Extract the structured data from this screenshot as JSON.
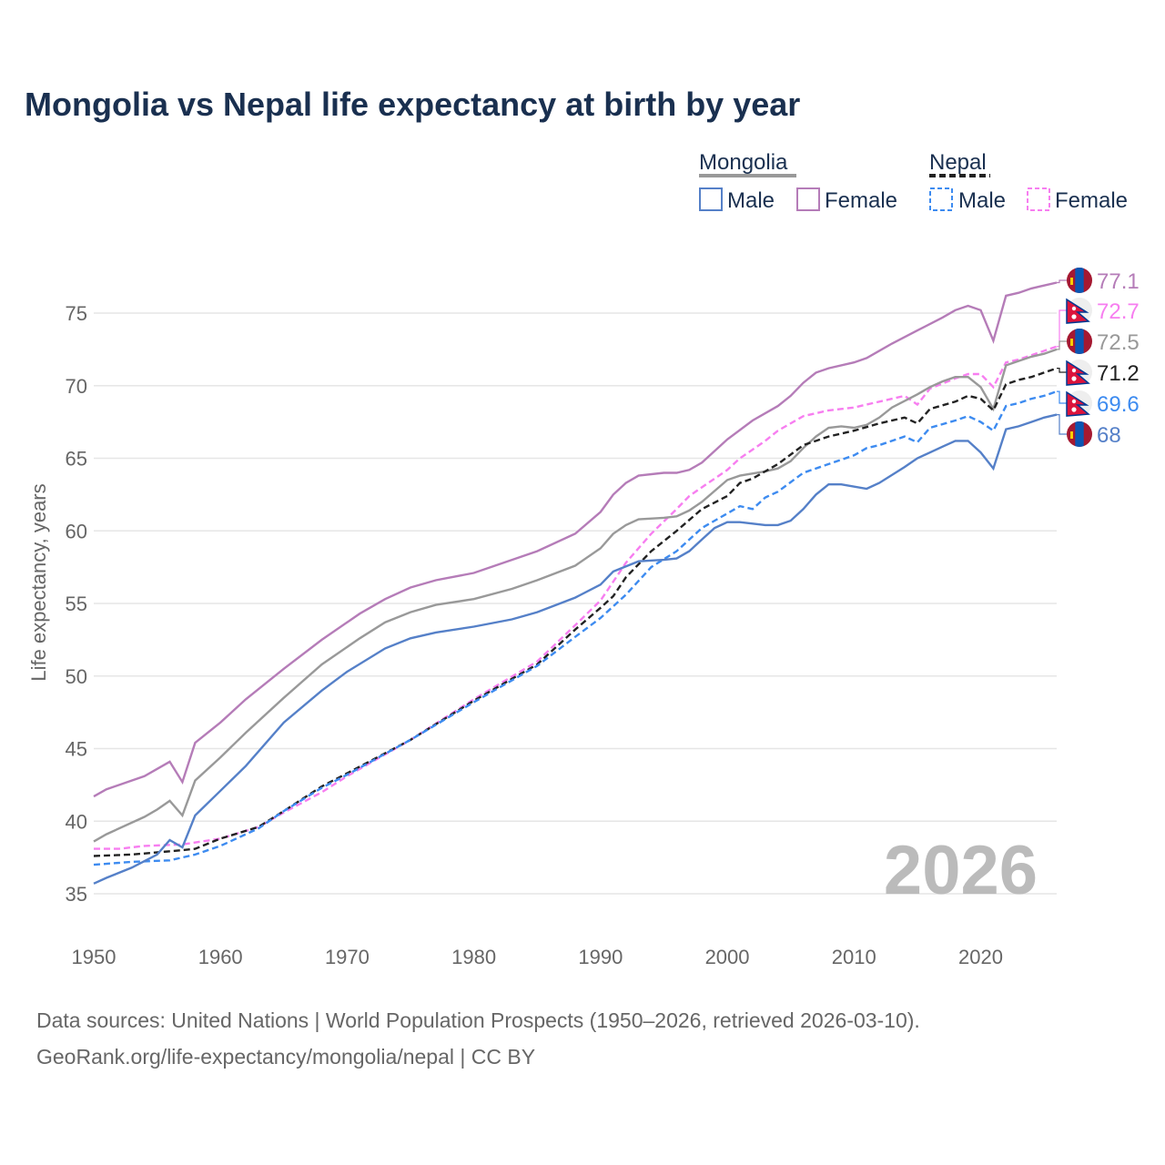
{
  "title": "Mongolia vs Nepal life expectancy at birth by year",
  "legend": {
    "group1": "Mongolia",
    "group2": "Nepal",
    "male": "Male",
    "female": "Female"
  },
  "watermark_year": "2026",
  "sources": [
    "Data sources: United Nations | World Population Prospects (1950–2026, retrieved 2026-03-10).",
    "GeoRank.org/life-expectancy/mongolia/nepal | CC BY"
  ],
  "chart_data": {
    "type": "line",
    "title": "Mongolia vs Nepal life expectancy at birth by year",
    "xlabel": "",
    "ylabel": "Life expectancy, years",
    "xlim": [
      1950,
      2026
    ],
    "ylim": [
      33,
      79
    ],
    "xticks": [
      "1950",
      "1960",
      "1970",
      "1980",
      "1990",
      "2000",
      "2010",
      "2020"
    ],
    "yticks": [
      "35",
      "40",
      "45",
      "50",
      "55",
      "60",
      "65",
      "70",
      "75"
    ],
    "grid": true,
    "legend_position": "top-right",
    "series": [
      {
        "name": "Mongolia Female",
        "country": "Mongolia",
        "color": "#b57cb8",
        "dashed": false,
        "end_label": "77.1",
        "points": [
          [
            1950,
            41.7
          ],
          [
            1951,
            42.2
          ],
          [
            1954,
            43.1
          ],
          [
            1956,
            44.1
          ],
          [
            1957,
            42.7
          ],
          [
            1958,
            45.4
          ],
          [
            1960,
            46.8
          ],
          [
            1962,
            48.4
          ],
          [
            1965,
            50.5
          ],
          [
            1968,
            52.5
          ],
          [
            1971,
            54.3
          ],
          [
            1973,
            55.3
          ],
          [
            1975,
            56.1
          ],
          [
            1977,
            56.6
          ],
          [
            1980,
            57.1
          ],
          [
            1985,
            58.6
          ],
          [
            1988,
            59.8
          ],
          [
            1990,
            61.3
          ],
          [
            1991,
            62.5
          ],
          [
            1992,
            63.3
          ],
          [
            1993,
            63.8
          ],
          [
            1995,
            64.0
          ],
          [
            1996,
            64.0
          ],
          [
            1997,
            64.2
          ],
          [
            1998,
            64.7
          ],
          [
            2000,
            66.3
          ],
          [
            2002,
            67.6
          ],
          [
            2004,
            68.6
          ],
          [
            2005,
            69.3
          ],
          [
            2006,
            70.2
          ],
          [
            2007,
            70.9
          ],
          [
            2008,
            71.2
          ],
          [
            2010,
            71.6
          ],
          [
            2011,
            71.9
          ],
          [
            2013,
            72.9
          ],
          [
            2015,
            73.8
          ],
          [
            2017,
            74.7
          ],
          [
            2018,
            75.2
          ],
          [
            2019,
            75.5
          ],
          [
            2020,
            75.2
          ],
          [
            2021,
            73.1
          ],
          [
            2022,
            76.2
          ],
          [
            2023,
            76.4
          ],
          [
            2024,
            76.7
          ],
          [
            2025,
            76.9
          ],
          [
            2026,
            77.1
          ]
        ]
      },
      {
        "name": "Nepal Female",
        "country": "Nepal",
        "color": "#f77ef0",
        "dashed": true,
        "end_label": "72.7",
        "points": [
          [
            1950,
            38.1
          ],
          [
            1952,
            38.1
          ],
          [
            1954,
            38.3
          ],
          [
            1957,
            38.4
          ],
          [
            1960,
            38.8
          ],
          [
            1963,
            39.6
          ],
          [
            1965,
            40.6
          ],
          [
            1968,
            42.0
          ],
          [
            1970,
            43.1
          ],
          [
            1975,
            45.6
          ],
          [
            1980,
            48.4
          ],
          [
            1985,
            51.0
          ],
          [
            1988,
            53.5
          ],
          [
            1990,
            55.2
          ],
          [
            1991,
            56.5
          ],
          [
            1992,
            57.8
          ],
          [
            1994,
            59.8
          ],
          [
            1996,
            61.5
          ],
          [
            1997,
            62.4
          ],
          [
            1998,
            63.0
          ],
          [
            2000,
            64.2
          ],
          [
            2001,
            65.0
          ],
          [
            2003,
            66.2
          ],
          [
            2004,
            66.9
          ],
          [
            2006,
            67.9
          ],
          [
            2008,
            68.3
          ],
          [
            2010,
            68.5
          ],
          [
            2012,
            68.9
          ],
          [
            2014,
            69.3
          ],
          [
            2015,
            68.7
          ],
          [
            2016,
            69.8
          ],
          [
            2018,
            70.5
          ],
          [
            2019,
            70.8
          ],
          [
            2020,
            70.8
          ],
          [
            2021,
            69.9
          ],
          [
            2022,
            71.6
          ],
          [
            2023,
            71.8
          ],
          [
            2024,
            72.1
          ],
          [
            2025,
            72.4
          ],
          [
            2026,
            72.7
          ]
        ]
      },
      {
        "name": "Mongolia",
        "country": "Mongolia",
        "color": "#999999",
        "dashed": false,
        "end_label": "72.5",
        "points": [
          [
            1950,
            38.6
          ],
          [
            1951,
            39.1
          ],
          [
            1954,
            40.3
          ],
          [
            1955,
            40.8
          ],
          [
            1956,
            41.4
          ],
          [
            1957,
            40.4
          ],
          [
            1958,
            42.8
          ],
          [
            1960,
            44.4
          ],
          [
            1962,
            46.1
          ],
          [
            1965,
            48.5
          ],
          [
            1968,
            50.8
          ],
          [
            1971,
            52.6
          ],
          [
            1973,
            53.7
          ],
          [
            1975,
            54.4
          ],
          [
            1977,
            54.9
          ],
          [
            1980,
            55.3
          ],
          [
            1983,
            56.0
          ],
          [
            1985,
            56.6
          ],
          [
            1988,
            57.6
          ],
          [
            1990,
            58.8
          ],
          [
            1991,
            59.8
          ],
          [
            1992,
            60.4
          ],
          [
            1993,
            60.8
          ],
          [
            1995,
            60.9
          ],
          [
            1996,
            61.0
          ],
          [
            1997,
            61.4
          ],
          [
            1998,
            62.0
          ],
          [
            2000,
            63.5
          ],
          [
            2001,
            63.8
          ],
          [
            2003,
            64.1
          ],
          [
            2004,
            64.3
          ],
          [
            2005,
            64.8
          ],
          [
            2006,
            65.7
          ],
          [
            2007,
            66.5
          ],
          [
            2008,
            67.1
          ],
          [
            2009,
            67.2
          ],
          [
            2010,
            67.1
          ],
          [
            2011,
            67.3
          ],
          [
            2012,
            67.8
          ],
          [
            2013,
            68.5
          ],
          [
            2015,
            69.4
          ],
          [
            2016,
            69.9
          ],
          [
            2017,
            70.3
          ],
          [
            2018,
            70.6
          ],
          [
            2019,
            70.6
          ],
          [
            2020,
            69.9
          ],
          [
            2021,
            68.4
          ],
          [
            2022,
            71.4
          ],
          [
            2023,
            71.7
          ],
          [
            2024,
            72.0
          ],
          [
            2025,
            72.2
          ],
          [
            2026,
            72.5
          ]
        ]
      },
      {
        "name": "Nepal",
        "country": "Nepal",
        "color": "#222222",
        "dashed": true,
        "end_label": "71.2",
        "points": [
          [
            1950,
            37.6
          ],
          [
            1953,
            37.7
          ],
          [
            1957,
            38.0
          ],
          [
            1958,
            38.1
          ],
          [
            1960,
            38.8
          ],
          [
            1963,
            39.6
          ],
          [
            1965,
            40.7
          ],
          [
            1968,
            42.4
          ],
          [
            1970,
            43.3
          ],
          [
            1975,
            45.6
          ],
          [
            1980,
            48.3
          ],
          [
            1985,
            50.8
          ],
          [
            1988,
            53.2
          ],
          [
            1990,
            54.7
          ],
          [
            1991,
            55.5
          ],
          [
            1992,
            56.8
          ],
          [
            1994,
            58.6
          ],
          [
            1996,
            60.0
          ],
          [
            1998,
            61.5
          ],
          [
            2000,
            62.4
          ],
          [
            2001,
            63.3
          ],
          [
            2002,
            63.6
          ],
          [
            2004,
            64.6
          ],
          [
            2006,
            65.9
          ],
          [
            2008,
            66.5
          ],
          [
            2010,
            66.9
          ],
          [
            2012,
            67.4
          ],
          [
            2014,
            67.8
          ],
          [
            2015,
            67.4
          ],
          [
            2016,
            68.4
          ],
          [
            2018,
            68.9
          ],
          [
            2019,
            69.3
          ],
          [
            2020,
            69.1
          ],
          [
            2021,
            68.3
          ],
          [
            2022,
            70.1
          ],
          [
            2023,
            70.4
          ],
          [
            2024,
            70.6
          ],
          [
            2025,
            70.9
          ],
          [
            2026,
            71.2
          ]
        ]
      },
      {
        "name": "Nepal Male",
        "country": "Nepal",
        "color": "#3d8bf0",
        "dashed": true,
        "end_label": "69.6",
        "points": [
          [
            1950,
            37.0
          ],
          [
            1953,
            37.2
          ],
          [
            1956,
            37.3
          ],
          [
            1958,
            37.7
          ],
          [
            1960,
            38.3
          ],
          [
            1963,
            39.5
          ],
          [
            1965,
            40.7
          ],
          [
            1968,
            42.3
          ],
          [
            1970,
            43.2
          ],
          [
            1975,
            45.6
          ],
          [
            1980,
            48.2
          ],
          [
            1985,
            50.7
          ],
          [
            1988,
            52.7
          ],
          [
            1990,
            54.0
          ],
          [
            1992,
            55.6
          ],
          [
            1994,
            57.5
          ],
          [
            1996,
            58.6
          ],
          [
            1998,
            60.2
          ],
          [
            2000,
            61.2
          ],
          [
            2001,
            61.7
          ],
          [
            2002,
            61.5
          ],
          [
            2003,
            62.3
          ],
          [
            2004,
            62.7
          ],
          [
            2006,
            64.0
          ],
          [
            2008,
            64.6
          ],
          [
            2010,
            65.2
          ],
          [
            2011,
            65.7
          ],
          [
            2012,
            65.9
          ],
          [
            2014,
            66.5
          ],
          [
            2015,
            66.1
          ],
          [
            2016,
            67.1
          ],
          [
            2018,
            67.6
          ],
          [
            2019,
            67.9
          ],
          [
            2020,
            67.5
          ],
          [
            2021,
            66.9
          ],
          [
            2022,
            68.6
          ],
          [
            2023,
            68.8
          ],
          [
            2024,
            69.1
          ],
          [
            2025,
            69.3
          ],
          [
            2026,
            69.6
          ]
        ]
      },
      {
        "name": "Mongolia Male",
        "country": "Mongolia",
        "color": "#5580c8",
        "dashed": false,
        "end_label": "68",
        "points": [
          [
            1950,
            35.7
          ],
          [
            1951,
            36.1
          ],
          [
            1953,
            36.8
          ],
          [
            1955,
            37.7
          ],
          [
            1956,
            38.7
          ],
          [
            1957,
            38.2
          ],
          [
            1958,
            40.4
          ],
          [
            1960,
            42.1
          ],
          [
            1962,
            43.8
          ],
          [
            1965,
            46.8
          ],
          [
            1968,
            49.0
          ],
          [
            1970,
            50.3
          ],
          [
            1973,
            51.9
          ],
          [
            1975,
            52.6
          ],
          [
            1977,
            53.0
          ],
          [
            1980,
            53.4
          ],
          [
            1983,
            53.9
          ],
          [
            1985,
            54.4
          ],
          [
            1988,
            55.4
          ],
          [
            1990,
            56.3
          ],
          [
            1991,
            57.2
          ],
          [
            1993,
            57.9
          ],
          [
            1995,
            58.0
          ],
          [
            1996,
            58.1
          ],
          [
            1997,
            58.6
          ],
          [
            1998,
            59.4
          ],
          [
            1999,
            60.2
          ],
          [
            2000,
            60.6
          ],
          [
            2001,
            60.6
          ],
          [
            2003,
            60.4
          ],
          [
            2004,
            60.4
          ],
          [
            2005,
            60.7
          ],
          [
            2006,
            61.5
          ],
          [
            2007,
            62.5
          ],
          [
            2008,
            63.2
          ],
          [
            2009,
            63.2
          ],
          [
            2011,
            62.9
          ],
          [
            2012,
            63.3
          ],
          [
            2014,
            64.4
          ],
          [
            2015,
            65.0
          ],
          [
            2017,
            65.8
          ],
          [
            2018,
            66.2
          ],
          [
            2019,
            66.2
          ],
          [
            2020,
            65.4
          ],
          [
            2021,
            64.3
          ],
          [
            2022,
            67.0
          ],
          [
            2023,
            67.2
          ],
          [
            2024,
            67.5
          ],
          [
            2025,
            67.8
          ],
          [
            2026,
            68.0
          ]
        ]
      }
    ]
  }
}
